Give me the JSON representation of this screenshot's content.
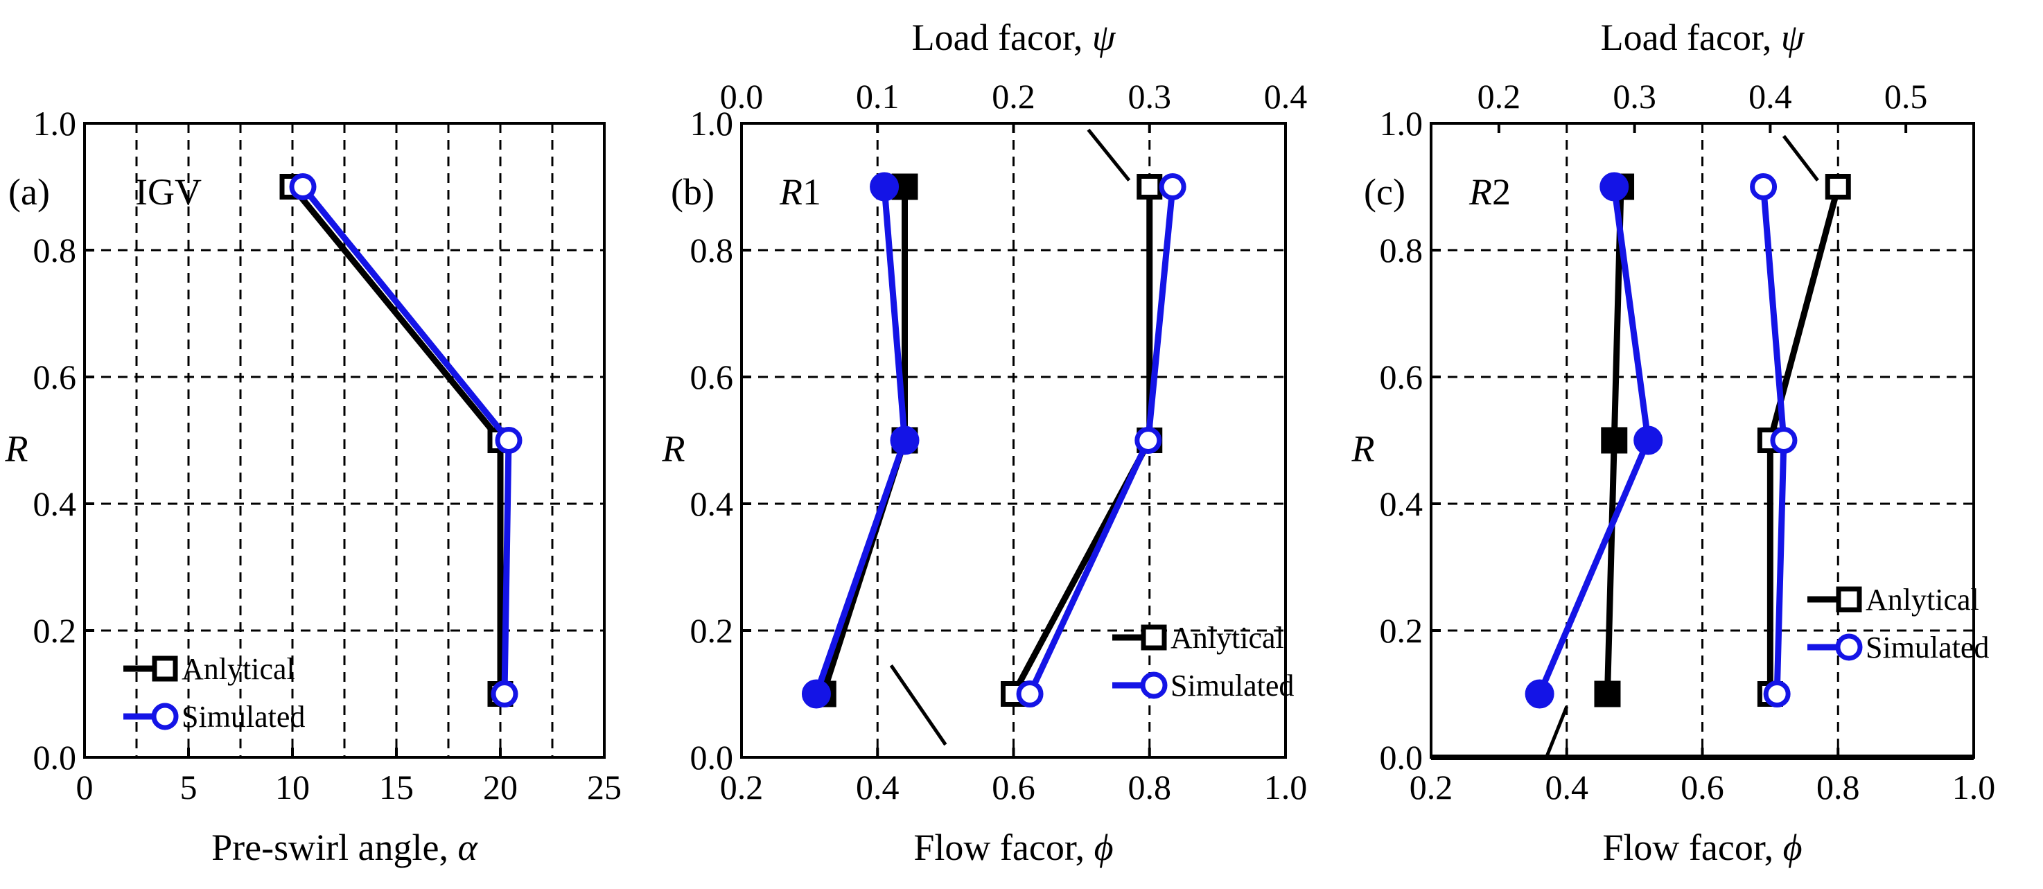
{
  "chart_data": [
    {
      "type": "line",
      "panel_tag": "(a)",
      "panel_name": "IGV",
      "xlabel": "Pre-swirl angle, ",
      "xlabel_symbol": "α",
      "ylabel": "R",
      "xlim": [
        0,
        25
      ],
      "ylim": [
        0.0,
        1.0
      ],
      "xticks": [
        "0",
        "5",
        "10",
        "15",
        "20",
        "25"
      ],
      "yticks": [
        "0.0",
        "0.2",
        "0.4",
        "0.6",
        "0.8",
        "1.0"
      ],
      "grid": true,
      "legend_position": "bottom-left",
      "series": [
        {
          "name": "Anlytical",
          "color": "#000000",
          "marker": "open-square",
          "points": [
            {
              "x": 10,
              "y": 0.9
            },
            {
              "x": 20,
              "y": 0.5
            },
            {
              "x": 20,
              "y": 0.1
            }
          ]
        },
        {
          "name": "Simulated",
          "color": "#1414e6",
          "marker": "open-circle",
          "points": [
            {
              "x": 10.5,
              "y": 0.9
            },
            {
              "x": 20.4,
              "y": 0.5
            },
            {
              "x": 20.2,
              "y": 0.1
            }
          ]
        }
      ]
    },
    {
      "type": "line",
      "panel_tag": "(b)",
      "panel_name": "R1",
      "panel_name_letter": "R",
      "panel_name_digit": "1",
      "xlabel": "Flow facor, ",
      "xlabel_symbol": "ϕ",
      "x2label": "Load facor, ",
      "x2label_symbol": "ψ",
      "ylabel": "R",
      "xlim": [
        0.2,
        1.0
      ],
      "x2lim": [
        0.0,
        0.4
      ],
      "ylim": [
        0.0,
        1.0
      ],
      "xticks": [
        "0.2",
        "0.4",
        "0.6",
        "0.8",
        "1.0"
      ],
      "x2ticks": [
        "0.0",
        "0.1",
        "0.2",
        "0.3",
        "0.4"
      ],
      "yticks": [
        "0.0",
        "0.2",
        "0.4",
        "0.6",
        "0.8",
        "1.0"
      ],
      "grid": true,
      "legend_position": "bottom-right",
      "series": [
        {
          "name": "Anlytical",
          "axis": "bottom",
          "quantity": "flow",
          "color": "#000000",
          "marker": "filled-square",
          "points": [
            {
              "x": 0.32,
              "y": 0.1
            },
            {
              "x": 0.44,
              "y": 0.5
            },
            {
              "x": 0.44,
              "y": 0.9
            }
          ]
        },
        {
          "name": "Simulated",
          "axis": "bottom",
          "quantity": "flow",
          "color": "#1414e6",
          "marker": "filled-circle",
          "points": [
            {
              "x": 0.31,
              "y": 0.1
            },
            {
              "x": 0.44,
              "y": 0.5
            },
            {
              "x": 0.41,
              "y": 0.9
            }
          ]
        },
        {
          "name": "Anlytical",
          "axis": "top",
          "quantity": "load",
          "color": "#000000",
          "marker": "open-square",
          "points": [
            {
              "x": 0.2,
              "y": 0.1
            },
            {
              "x": 0.3,
              "y": 0.5
            },
            {
              "x": 0.3,
              "y": 0.9
            }
          ]
        },
        {
          "name": "Simulated",
          "axis": "top",
          "quantity": "load",
          "color": "#1414e6",
          "marker": "open-circle",
          "points": [
            {
              "x": 0.212,
              "y": 0.1
            },
            {
              "x": 0.299,
              "y": 0.5
            },
            {
              "x": 0.317,
              "y": 0.9
            }
          ]
        }
      ],
      "pointer_lines": [
        {
          "from": {
            "x": 0.42,
            "y": 0.145
          },
          "to": {
            "x": 0.5,
            "y": 0.02
          }
        },
        {
          "from": {
            "x": 0.71,
            "y": 0.99
          },
          "to": {
            "x": 0.77,
            "y": 0.91
          }
        }
      ]
    },
    {
      "type": "line",
      "panel_tag": "(c)",
      "panel_name": "R2",
      "panel_name_letter": "R",
      "panel_name_digit": "2",
      "xlabel": "Flow facor, ",
      "xlabel_symbol": "ϕ",
      "x2label": "Load facor, ",
      "x2label_symbol": "ψ",
      "ylabel": "R",
      "xlim": [
        0.2,
        1.0
      ],
      "x2lim": [
        0.15,
        0.55
      ],
      "ylim": [
        0.0,
        1.0
      ],
      "xticks": [
        "0.2",
        "0.4",
        "0.6",
        "0.8",
        "1.0"
      ],
      "x2ticks": [
        "0.2",
        "0.3",
        "0.4",
        "0.5"
      ],
      "yticks": [
        "0.0",
        "0.2",
        "0.4",
        "0.6",
        "0.8",
        "1.0"
      ],
      "grid": true,
      "legend_position": "right-middle",
      "series": [
        {
          "name": "Anlytical",
          "axis": "bottom",
          "quantity": "flow",
          "color": "#000000",
          "marker": "filled-square",
          "points": [
            {
              "x": 0.46,
              "y": 0.1
            },
            {
              "x": 0.47,
              "y": 0.5
            },
            {
              "x": 0.48,
              "y": 0.9
            }
          ]
        },
        {
          "name": "Simulated",
          "axis": "bottom",
          "quantity": "flow",
          "color": "#1414e6",
          "marker": "filled-circle",
          "points": [
            {
              "x": 0.36,
              "y": 0.1
            },
            {
              "x": 0.52,
              "y": 0.5
            },
            {
              "x": 0.47,
              "y": 0.9
            }
          ]
        },
        {
          "name": "Anlytical",
          "axis": "top",
          "quantity": "load",
          "color": "#000000",
          "marker": "open-square",
          "points": [
            {
              "x": 0.4,
              "y": 0.1
            },
            {
              "x": 0.4,
              "y": 0.5
            },
            {
              "x": 0.45,
              "y": 0.9
            }
          ]
        },
        {
          "name": "Simulated",
          "axis": "top",
          "quantity": "load",
          "color": "#1414e6",
          "marker": "open-circle",
          "points": [
            {
              "x": 0.405,
              "y": 0.1
            },
            {
              "x": 0.41,
              "y": 0.5
            },
            {
              "x": 0.395,
              "y": 0.9
            }
          ]
        }
      ],
      "pointer_lines": [
        {
          "from": {
            "x": 0.4,
            "y": 0.08
          },
          "to": {
            "x": 0.37,
            "y": 0.0
          }
        },
        {
          "from": {
            "x": 0.72,
            "y": 0.98
          },
          "to": {
            "x": 0.77,
            "y": 0.91
          }
        }
      ]
    }
  ],
  "colors": {
    "analytical": "#000000",
    "simulated": "#1414e6",
    "grid": "#000000",
    "background": "#ffffff"
  }
}
